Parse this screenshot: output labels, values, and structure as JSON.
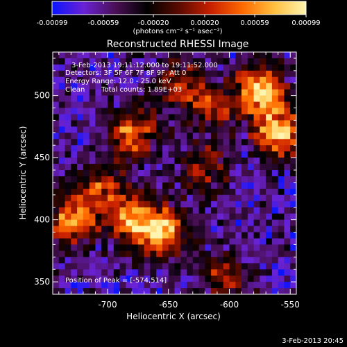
{
  "colorbar": {
    "ticks": [
      "-0.00099",
      "-0.00059",
      "-0.00020",
      "0.00020",
      "0.00059",
      "0.00099"
    ],
    "tick_values": [
      -0.00099,
      -0.00059,
      -0.0002,
      0.0002,
      0.00059,
      0.00099
    ],
    "range": [
      -0.00099,
      0.00099
    ],
    "unit_label": "(photons cm⁻² s⁻¹ asec⁻²)",
    "colors": [
      "#0a14ff",
      "#6a22d4",
      "#4a0f55",
      "#000000",
      "#5a0a00",
      "#c82000",
      "#ff6a00",
      "#ffc040",
      "#fff4b0"
    ]
  },
  "chart_data": {
    "type": "heatmap",
    "title": "Reconstructed RHESSI Image",
    "xlabel": "Heliocentric X (arcsec)",
    "ylabel": "Heliocentric Y (arcsec)",
    "xlim": [
      -745,
      -545
    ],
    "ylim": [
      340,
      535
    ],
    "x_ticks": [
      "-700",
      "-650",
      "-600",
      "-550"
    ],
    "x_tick_values": [
      -700,
      -650,
      -600,
      -550
    ],
    "y_ticks": [
      "350",
      "400",
      "450",
      "500"
    ],
    "y_tick_values": [
      350,
      400,
      450,
      500
    ],
    "peak_position": [
      -574,
      514
    ],
    "hot_regions": [
      {
        "x": -575,
        "y": 505,
        "intensity": 1.0
      },
      {
        "x": -560,
        "y": 470,
        "intensity": 0.95
      },
      {
        "x": -655,
        "y": 390,
        "intensity": 0.95
      },
      {
        "x": -680,
        "y": 400,
        "intensity": 0.8
      },
      {
        "x": -730,
        "y": 400,
        "intensity": 0.8
      },
      {
        "x": -680,
        "y": 470,
        "intensity": 0.75
      },
      {
        "x": -705,
        "y": 425,
        "intensity": 0.6
      },
      {
        "x": -620,
        "y": 440,
        "intensity": 0.5
      },
      {
        "x": -615,
        "y": 490,
        "intensity": 0.5
      },
      {
        "x": -640,
        "y": 510,
        "intensity": 0.55
      },
      {
        "x": -605,
        "y": 355,
        "intensity": 0.5
      }
    ],
    "annotations": [
      "3-Feb-2013 19:11:12.000 to 19:11:52.000",
      "Detectors: 3F 5F 6F 7F 8F 9F, Att 0",
      "Energy Range: 12.0 - 25.0 keV",
      "Clean",
      "Total counts: 1.89E+03",
      "Position of Peak = [-574,514]"
    ]
  },
  "footer": {
    "timestamp": "3-Feb-2013 20:45"
  }
}
